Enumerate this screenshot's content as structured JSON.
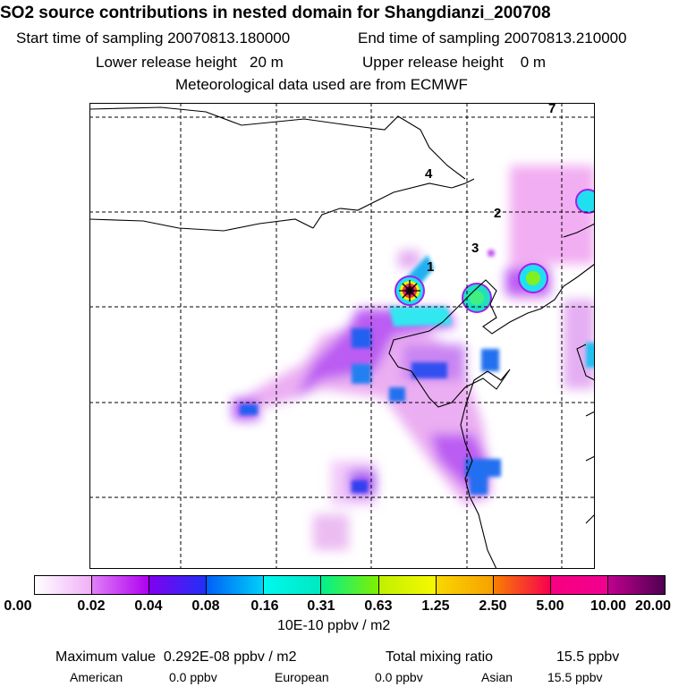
{
  "header": {
    "title": "SO2 source contributions in nested domain for Shangdianzi_200708",
    "start_label": "Start time of sampling 20070813.180000",
    "end_label": "End time of sampling 20070813.210000",
    "lower_label": "Lower release height   20 m",
    "upper_label": "Upper release height    0 m",
    "met_label": "Meteorological data used are from ECMWF"
  },
  "map": {
    "markers": [
      "1",
      "2",
      "3",
      "4",
      "7"
    ]
  },
  "colorbar": {
    "labels": [
      "0.00",
      "0.02",
      "0.04",
      "0.08",
      "0.16",
      "0.31",
      "0.63",
      "1.25",
      "2.50",
      "5.00",
      "10.00",
      "20.00"
    ],
    "segments": [
      [
        "#ffffff",
        "#f0b0f8"
      ],
      [
        "#e080f8",
        "#b000f0"
      ],
      [
        "#8000f0",
        "#2030f8"
      ],
      [
        "#0060f8",
        "#00d0f8"
      ],
      [
        "#00f8f0",
        "#00e8c0"
      ],
      [
        "#00f090",
        "#80f000"
      ],
      [
        "#c0f000",
        "#f8f800"
      ],
      [
        "#f8d800",
        "#f8a000"
      ],
      [
        "#f88000",
        "#f80050"
      ],
      [
        "#f80080",
        "#f00090"
      ],
      [
        "#c00090",
        "#500050"
      ]
    ],
    "unit": "10E-10 ppbv / m2"
  },
  "footer": {
    "max_label": "Maximum value  0.292E-08 ppbv / m2",
    "total_label": "Total mixing ratio",
    "total_value": "15.5 ppbv",
    "american_label": "American",
    "american_value": "0.0 ppbv",
    "european_label": "European",
    "european_value": "0.0 ppbv",
    "asian_label": "Asian",
    "asian_value": "15.5 ppbv"
  }
}
